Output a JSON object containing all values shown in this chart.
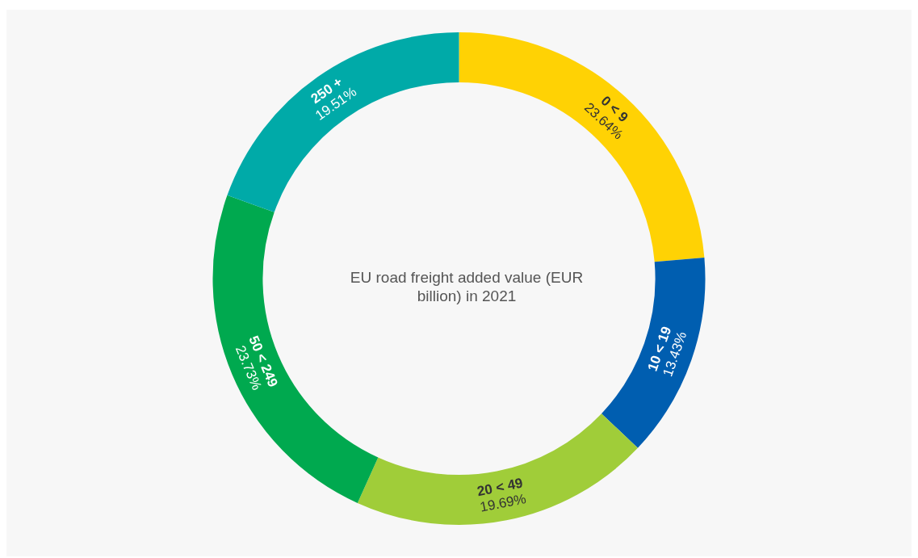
{
  "chart_data": {
    "type": "donut",
    "title": "EU road freight added value (EUR billion) in 2021",
    "categories": [
      "0 < 9",
      "10 < 19",
      "20 < 49",
      "50 < 249",
      "250 +"
    ],
    "values": [
      23.64,
      13.43,
      19.69,
      23.73,
      19.51
    ],
    "value_labels": [
      "23.64%",
      "13.43%",
      "19.69%",
      "23.73%",
      "19.51%"
    ],
    "colors": [
      "#ffd204",
      "#005eb0",
      "#a0cd39",
      "#00a94f",
      "#00aaa8"
    ],
    "legend": false
  }
}
